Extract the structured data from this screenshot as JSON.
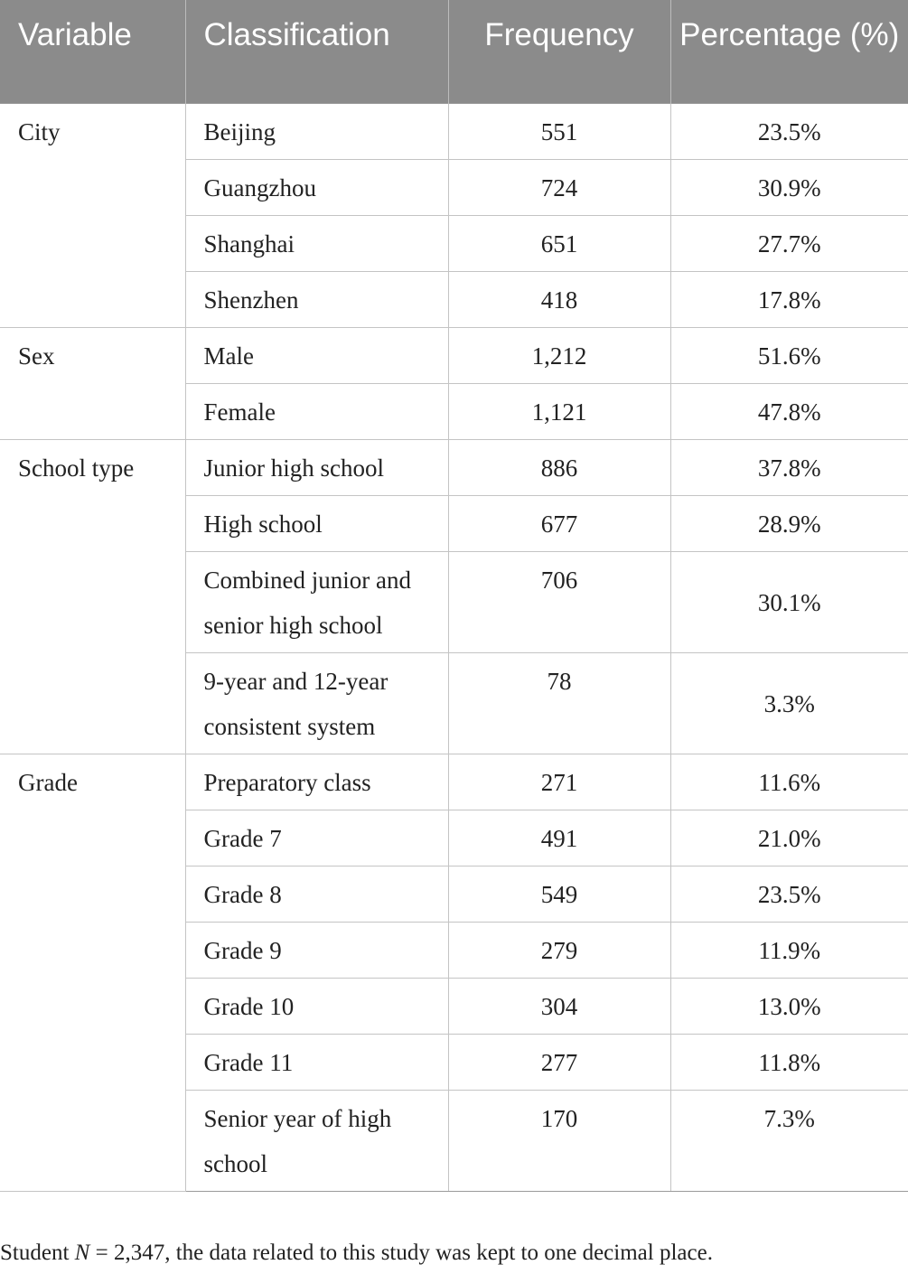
{
  "table": {
    "headers": [
      "Variable",
      "Classification",
      "Frequency",
      "Percentage (%)"
    ],
    "groups": [
      {
        "variable": "City",
        "rows": [
          {
            "classification": "Beijing",
            "frequency": "551",
            "percentage": "23.5%"
          },
          {
            "classification": "Guangzhou",
            "frequency": "724",
            "percentage": "30.9%"
          },
          {
            "classification": "Shanghai",
            "frequency": "651",
            "percentage": "27.7%"
          },
          {
            "classification": "Shenzhen",
            "frequency": "418",
            "percentage": "17.8%"
          }
        ]
      },
      {
        "variable": "Sex",
        "rows": [
          {
            "classification": "Male",
            "frequency": "1,212",
            "percentage": "51.6%"
          },
          {
            "classification": "Female",
            "frequency": "1,121",
            "percentage": "47.8%"
          }
        ]
      },
      {
        "variable": "School type",
        "rows": [
          {
            "classification": "Junior high school",
            "frequency": "886",
            "percentage": "37.8%"
          },
          {
            "classification": "High school",
            "frequency": "677",
            "percentage": "28.9%"
          },
          {
            "classification": "Combined junior and senior high school",
            "frequency": "706",
            "percentage": "30.1%"
          },
          {
            "classification": "9-year and 12-year consistent system",
            "frequency": "78",
            "percentage": "3.3%"
          }
        ]
      },
      {
        "variable": "Grade",
        "rows": [
          {
            "classification": "Preparatory class",
            "frequency": "271",
            "percentage": "11.6%"
          },
          {
            "classification": "Grade 7",
            "frequency": "491",
            "percentage": "21.0%"
          },
          {
            "classification": "Grade 8",
            "frequency": "549",
            "percentage": "23.5%"
          },
          {
            "classification": "Grade 9",
            "frequency": "279",
            "percentage": "11.9%"
          },
          {
            "classification": "Grade 10",
            "frequency": "304",
            "percentage": "13.0%"
          },
          {
            "classification": "Grade 11",
            "frequency": "277",
            "percentage": "11.8%"
          },
          {
            "classification": "Senior year of high school",
            "frequency": "170",
            "percentage": "7.3%"
          }
        ]
      }
    ]
  },
  "note": {
    "prefix": "Student ",
    "n_symbol": "N",
    "text": " = 2,347, the data related to this study was kept to one decimal place."
  }
}
